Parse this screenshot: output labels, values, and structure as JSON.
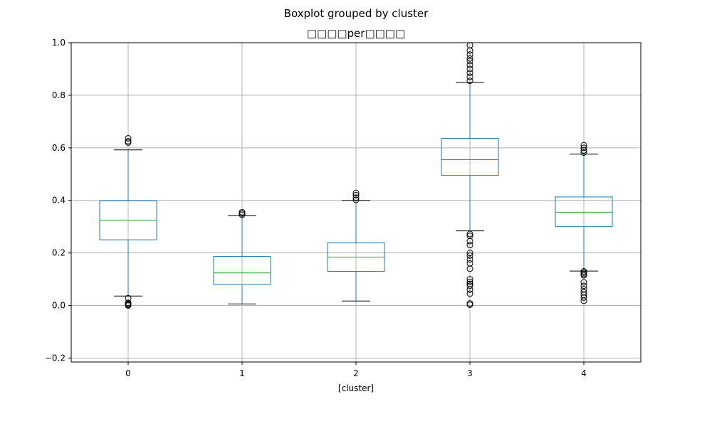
{
  "chart_data": {
    "type": "boxplot",
    "suptitle": "Boxplot grouped by cluster",
    "title": "□□□□per□□□□",
    "xlabel": "[cluster]",
    "ylabel": "",
    "ylim": [
      -0.215,
      1.0
    ],
    "yticks": [
      -0.2,
      0.0,
      0.2,
      0.4,
      0.6,
      0.8,
      1.0
    ],
    "ytick_labels": [
      "−0.2",
      "0.0",
      "0.2",
      "0.4",
      "0.6",
      "0.8",
      "1.0"
    ],
    "categories": [
      "0",
      "1",
      "2",
      "3",
      "4"
    ],
    "grid": true,
    "colors": {
      "box": "#1f77b4",
      "median": "#2ca02c",
      "whisker_cap": "#000000",
      "grid": "#b0b0b0"
    },
    "boxes": [
      {
        "category": "0",
        "whisker_low": 0.036,
        "q1": 0.25,
        "median": 0.325,
        "q3": 0.398,
        "whisker_high": 0.592,
        "fliers": [
          0.0,
          0.003,
          0.006,
          0.01,
          0.028,
          0.62,
          0.625,
          0.636
        ]
      },
      {
        "category": "1",
        "whisker_low": 0.006,
        "q1": 0.08,
        "median": 0.124,
        "q3": 0.187,
        "whisker_high": 0.341,
        "fliers": [
          0.345,
          0.35,
          0.355
        ]
      },
      {
        "category": "2",
        "whisker_low": 0.017,
        "q1": 0.13,
        "median": 0.184,
        "q3": 0.238,
        "whisker_high": 0.4,
        "fliers": [
          0.402,
          0.41,
          0.42,
          0.428
        ]
      },
      {
        "category": "3",
        "whisker_low": 0.284,
        "q1": 0.495,
        "median": 0.555,
        "q3": 0.636,
        "whisker_high": 0.849,
        "fliers": [
          0.003,
          0.008,
          0.045,
          0.06,
          0.075,
          0.082,
          0.09,
          0.1,
          0.14,
          0.16,
          0.175,
          0.19,
          0.2,
          0.23,
          0.245,
          0.265,
          0.272,
          0.855,
          0.87,
          0.885,
          0.9,
          0.915,
          0.93,
          0.94,
          0.955,
          0.97,
          0.99
        ]
      },
      {
        "category": "4",
        "whisker_low": 0.131,
        "q1": 0.3,
        "median": 0.355,
        "q3": 0.413,
        "whisker_high": 0.576,
        "fliers": [
          0.018,
          0.03,
          0.04,
          0.05,
          0.062,
          0.075,
          0.088,
          0.115,
          0.12,
          0.125,
          0.13,
          0.582,
          0.59,
          0.6,
          0.61
        ]
      }
    ]
  }
}
